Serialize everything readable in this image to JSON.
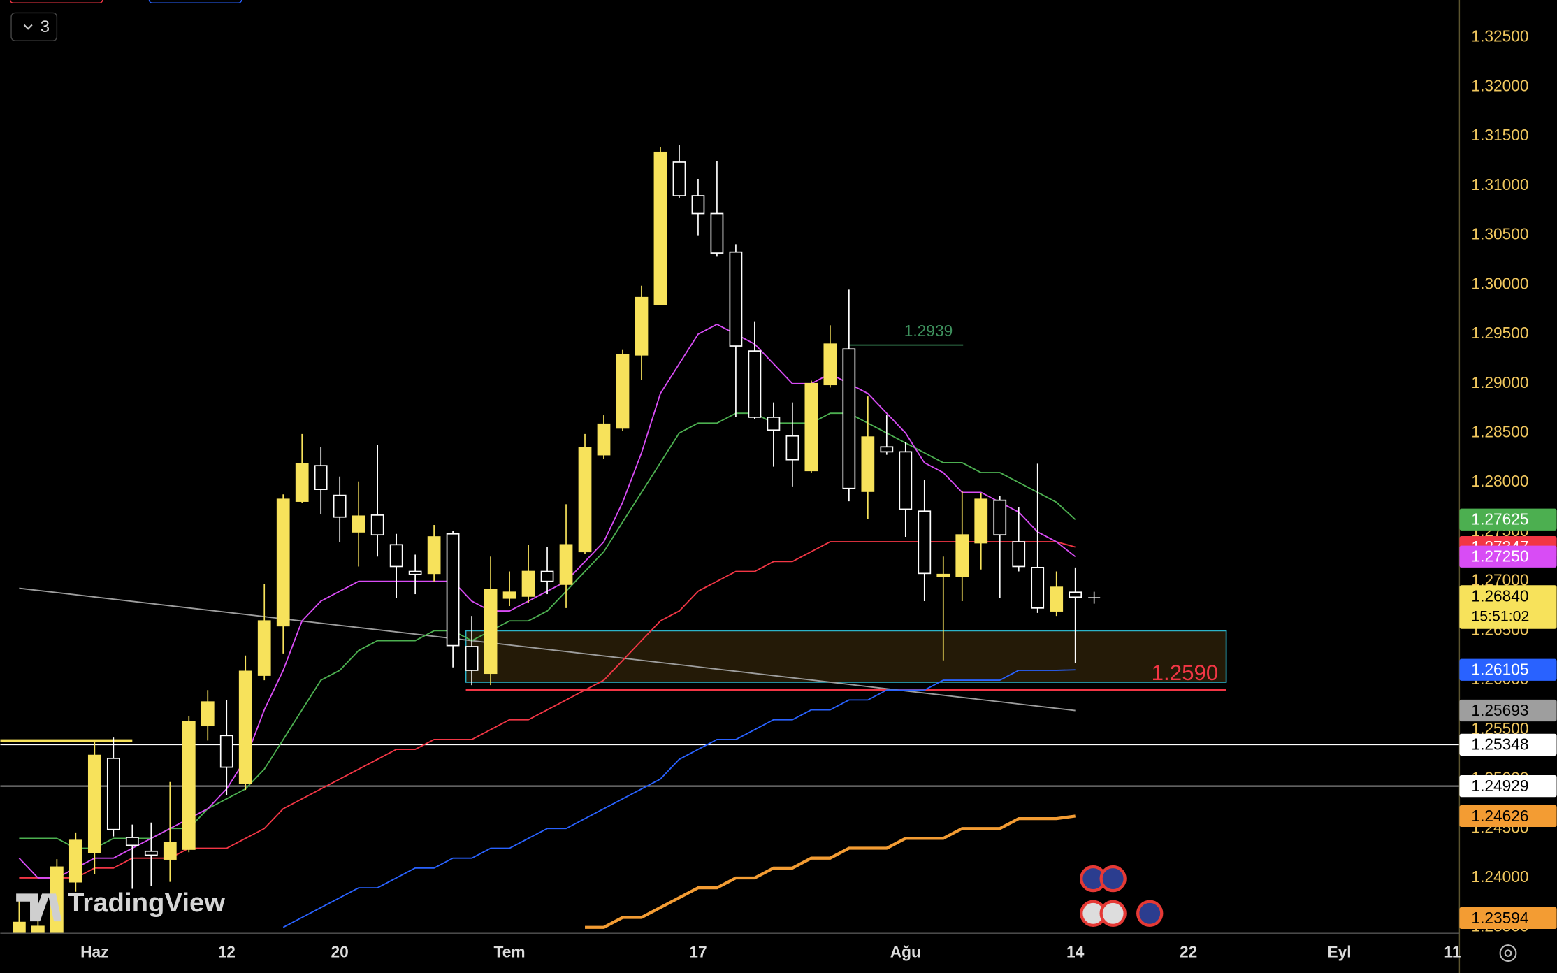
{
  "chart_data": {
    "type": "candlestick",
    "categories": [
      null,
      null,
      null,
      null,
      "Haz",
      null,
      null,
      null,
      null,
      null,
      null,
      "12",
      null,
      null,
      null,
      null,
      null,
      "20",
      null,
      null,
      null,
      null,
      null,
      null,
      null,
      null,
      "Tem",
      null,
      null,
      null,
      null,
      null,
      null,
      null,
      null,
      null,
      "17",
      null,
      null,
      null,
      null,
      null,
      null,
      null,
      null,
      null,
      null,
      "Ağu",
      null,
      null,
      null,
      null,
      null,
      null,
      null,
      null,
      "14",
      null,
      null,
      null,
      null,
      null,
      "22",
      null,
      null,
      null,
      null,
      null,
      null,
      null,
      "Eyl",
      null,
      null,
      null,
      null,
      null,
      "11"
    ],
    "open": [
      1.2343,
      1.2343,
      1.2345,
      1.2396,
      1.2426,
      1.2521,
      1.2441,
      1.2427,
      1.2419,
      1.2429,
      1.2554,
      1.2544,
      1.2496,
      1.2605,
      1.2655,
      1.2781,
      1.2817,
      1.2787,
      1.275,
      1.2767,
      1.2737,
      1.271,
      1.2708,
      1.2748,
      1.2634,
      1.2607,
      1.2683,
      1.2685,
      1.271,
      1.2697,
      1.273,
      1.2828,
      1.2855,
      1.2929,
      1.298,
      1.3124,
      1.309,
      1.3072,
      1.3033,
      1.2933,
      1.2866,
      1.2847,
      1.2812,
      1.2899,
      1.2935,
      1.2791,
      1.2836,
      1.2831,
      1.2771,
      1.2705,
      1.2705,
      1.2739,
      1.2782,
      1.274,
      1.2714,
      1.267,
      1.2689,
      null,
      null,
      null,
      null,
      null,
      null,
      null,
      null,
      null,
      null,
      null,
      null,
      null,
      null,
      null,
      null,
      null,
      null,
      null,
      null
    ],
    "high": [
      1.2384,
      1.2358,
      1.2419,
      1.2446,
      1.2539,
      1.2542,
      1.2454,
      1.2456,
      1.2497,
      1.2564,
      1.259,
      1.258,
      1.2625,
      1.2697,
      1.2788,
      1.2849,
      1.2836,
      1.2806,
      1.2801,
      1.2838,
      1.2748,
      1.2727,
      1.2757,
      1.2751,
      1.2665,
      1.2725,
      1.271,
      1.2737,
      1.2735,
      1.2778,
      1.2849,
      1.2868,
      1.2934,
      1.2999,
      1.3139,
      1.3141,
      1.3107,
      1.3125,
      1.3041,
      1.2963,
      1.2881,
      1.2881,
      1.2903,
      1.2959,
      1.2995,
      1.2887,
      1.2868,
      1.2841,
      1.2803,
      1.2725,
      1.2791,
      1.2789,
      1.2786,
      1.2775,
      1.2819,
      1.271,
      1.2714,
      null,
      null,
      null,
      null,
      null,
      null,
      null,
      null,
      null,
      null,
      null,
      null,
      null,
      null,
      null,
      null,
      null,
      null,
      null,
      null
    ],
    "low": [
      1.2338,
      1.2338,
      1.2338,
      1.2386,
      1.2404,
      1.2442,
      1.2389,
      1.2392,
      1.2396,
      1.2426,
      1.2539,
      1.2484,
      1.2489,
      1.26,
      1.2627,
      1.2779,
      1.2768,
      1.274,
      1.2715,
      1.2725,
      1.2683,
      1.2687,
      1.27,
      1.2613,
      1.2595,
      1.2595,
      1.2675,
      1.2678,
      1.2687,
      1.2673,
      1.2728,
      1.2824,
      1.2852,
      1.2904,
      1.2979,
      1.3088,
      1.305,
      1.3029,
      1.2866,
      1.2864,
      1.2816,
      1.2796,
      1.281,
      1.2896,
      1.2781,
      1.2763,
      1.2828,
      1.2745,
      1.268,
      1.262,
      1.268,
      1.2712,
      1.2683,
      1.271,
      1.2668,
      1.2665,
      1.2617,
      null,
      null,
      null,
      null,
      null,
      null,
      null,
      null,
      null,
      null,
      null,
      null,
      null,
      null,
      null,
      null,
      null,
      null,
      null,
      null
    ],
    "close": [
      1.2355,
      1.2351,
      1.2411,
      1.2438,
      1.2524,
      1.2449,
      1.2433,
      1.2423,
      1.2436,
      1.2558,
      1.2578,
      1.2512,
      1.2609,
      1.266,
      1.2783,
      1.2819,
      1.2793,
      1.2765,
      1.2766,
      1.2747,
      1.2715,
      1.2707,
      1.2745,
      1.2635,
      1.261,
      1.2692,
      1.2689,
      1.271,
      1.27,
      1.2737,
      1.2835,
      1.2859,
      1.2929,
      1.2987,
      1.3134,
      1.309,
      1.3072,
      1.3032,
      1.2938,
      1.2866,
      1.2853,
      1.2823,
      1.29,
      1.294,
      1.2794,
      1.2846,
      1.2831,
      1.2773,
      1.2708,
      1.2707,
      1.2747,
      1.2783,
      1.2747,
      1.2715,
      1.2673,
      1.2694,
      1.2684,
      null,
      null,
      null,
      null,
      null,
      null,
      null,
      null,
      null,
      null,
      null,
      null,
      null,
      null,
      null,
      null,
      null,
      null,
      null,
      null
    ],
    "up_color": "#f7e25b",
    "down_color": "#ffffff",
    "ylim": [
      1.2344,
      1.3288
    ],
    "yticks": [
      {
        "value": 1.325,
        "label": "1.32500"
      },
      {
        "value": 1.32,
        "label": "1.32000"
      },
      {
        "value": 1.315,
        "label": "1.31500"
      },
      {
        "value": 1.31,
        "label": "1.31000"
      },
      {
        "value": 1.305,
        "label": "1.30500"
      },
      {
        "value": 1.3,
        "label": "1.30000"
      },
      {
        "value": 1.295,
        "label": "1.29500"
      },
      {
        "value": 1.29,
        "label": "1.29000"
      },
      {
        "value": 1.285,
        "label": "1.28500"
      },
      {
        "value": 1.28,
        "label": "1.28000"
      },
      {
        "value": 1.275,
        "label": "1.27500"
      },
      {
        "value": 1.27,
        "label": "1.27000"
      },
      {
        "value": 1.265,
        "label": "1.26500"
      },
      {
        "value": 1.26,
        "label": "1.26000"
      },
      {
        "value": 1.255,
        "label": "1.25500"
      },
      {
        "value": 1.25,
        "label": "1.25000"
      },
      {
        "value": 1.245,
        "label": "1.24500"
      },
      {
        "value": 1.24,
        "label": "1.24000"
      },
      {
        "value": 1.235,
        "label": "1.23500"
      }
    ],
    "series": [
      {
        "color": "#4caf50",
        "end_label": "1.27625",
        "values": [
          1.244,
          1.244,
          1.244,
          1.243,
          1.243,
          1.244,
          1.244,
          1.244,
          1.245,
          1.245,
          1.247,
          1.248,
          1.249,
          1.251,
          1.254,
          1.257,
          1.26,
          1.261,
          1.263,
          1.264,
          1.264,
          1.264,
          1.265,
          1.265,
          1.264,
          1.265,
          1.266,
          1.266,
          1.267,
          1.269,
          1.271,
          1.273,
          1.276,
          1.279,
          1.282,
          1.285,
          1.286,
          1.286,
          1.287,
          1.287,
          1.286,
          1.286,
          1.286,
          1.287,
          1.287,
          1.286,
          1.285,
          1.284,
          1.283,
          1.282,
          1.282,
          1.281,
          1.281,
          1.28,
          1.279,
          1.278,
          1.27625,
          null,
          null,
          null,
          null,
          null,
          null,
          null,
          null,
          null,
          null,
          null,
          null,
          null,
          null,
          null,
          null,
          null,
          null,
          null,
          null
        ]
      },
      {
        "color": "#f23645",
        "end_label": "1.27347",
        "values": [
          1.24,
          1.24,
          1.24,
          1.24,
          1.241,
          1.241,
          1.242,
          1.242,
          1.242,
          1.243,
          1.243,
          1.243,
          1.244,
          1.245,
          1.247,
          1.248,
          1.249,
          1.25,
          1.251,
          1.252,
          1.253,
          1.253,
          1.254,
          1.254,
          1.254,
          1.255,
          1.256,
          1.256,
          1.257,
          1.258,
          1.259,
          1.26,
          1.262,
          1.264,
          1.266,
          1.267,
          1.269,
          1.27,
          1.271,
          1.271,
          1.272,
          1.272,
          1.273,
          1.274,
          1.274,
          1.274,
          1.274,
          1.274,
          1.274,
          1.274,
          1.274,
          1.274,
          1.274,
          1.274,
          1.274,
          1.274,
          1.27347,
          null,
          null,
          null,
          null,
          null,
          null,
          null,
          null,
          null,
          null,
          null,
          null,
          null,
          null,
          null,
          null,
          null,
          null,
          null,
          null
        ]
      },
      {
        "color": "#d84cf5",
        "end_label": "1.27250",
        "values": [
          1.242,
          1.24,
          1.24,
          1.241,
          1.242,
          1.242,
          1.243,
          1.244,
          1.245,
          1.246,
          1.247,
          1.249,
          1.252,
          1.257,
          1.261,
          1.266,
          1.268,
          1.269,
          1.27,
          1.27,
          1.27,
          1.27,
          1.27,
          1.27,
          1.268,
          1.267,
          1.267,
          1.268,
          1.269,
          1.27,
          1.272,
          1.274,
          1.278,
          1.283,
          1.289,
          1.292,
          1.295,
          1.296,
          1.295,
          1.294,
          1.292,
          1.29,
          1.29,
          1.291,
          1.29,
          1.289,
          1.287,
          1.285,
          1.282,
          1.281,
          1.279,
          1.279,
          1.278,
          1.277,
          1.275,
          1.274,
          1.2725,
          null,
          null,
          null,
          null,
          null,
          null,
          null,
          null,
          null,
          null,
          null,
          null,
          null,
          null,
          null,
          null,
          null,
          null,
          null,
          null
        ]
      },
      {
        "color": "#2962ff",
        "end_label": "1.26105",
        "values": [
          null,
          null,
          null,
          null,
          null,
          null,
          null,
          null,
          null,
          null,
          null,
          null,
          null,
          null,
          1.235,
          1.236,
          1.237,
          1.238,
          1.239,
          1.239,
          1.24,
          1.241,
          1.241,
          1.242,
          1.242,
          1.243,
          1.243,
          1.244,
          1.245,
          1.245,
          1.246,
          1.247,
          1.248,
          1.249,
          1.25,
          1.252,
          1.253,
          1.254,
          1.254,
          1.255,
          1.256,
          1.256,
          1.257,
          1.257,
          1.258,
          1.258,
          1.259,
          1.259,
          1.259,
          1.26,
          1.26,
          1.26,
          1.26,
          1.261,
          1.261,
          1.261,
          1.26105,
          null,
          null,
          null,
          null,
          null,
          null,
          null,
          null,
          null,
          null,
          null,
          null,
          null,
          null,
          null,
          null,
          null,
          null,
          null,
          null
        ]
      },
      {
        "color": "#f39c33",
        "end_label": "1.24626",
        "values": [
          null,
          null,
          null,
          null,
          null,
          null,
          null,
          null,
          null,
          null,
          null,
          null,
          null,
          null,
          null,
          null,
          null,
          null,
          null,
          null,
          null,
          null,
          null,
          null,
          null,
          null,
          null,
          null,
          null,
          null,
          1.235,
          1.235,
          1.236,
          1.236,
          1.237,
          1.238,
          1.239,
          1.239,
          1.24,
          1.24,
          1.241,
          1.241,
          1.242,
          1.242,
          1.243,
          1.243,
          1.243,
          1.244,
          1.244,
          1.244,
          1.245,
          1.245,
          1.245,
          1.246,
          1.246,
          1.246,
          1.24626,
          null,
          null,
          null,
          null,
          null,
          null,
          null,
          null,
          null,
          null,
          null,
          null,
          null,
          null,
          null,
          null,
          null,
          null,
          null,
          null
        ]
      }
    ],
    "trendline": {
      "color": "#9e9e9e",
      "values": [
        1.2693,
        1.25693
      ],
      "end_label": "1.25693"
    },
    "price_lines": [
      {
        "value": 1.25348,
        "label": "1.25348",
        "color": "#ffffff"
      },
      {
        "value": 1.24929,
        "label": "1.24929",
        "color": "#ffffff"
      }
    ],
    "price_tags": [
      {
        "value": 1.23594,
        "label": "1.23594",
        "color": "#f39c33"
      }
    ],
    "short_level": {
      "value": 1.2539,
      "color": "#f7e25b"
    },
    "level": {
      "value": 1.2939,
      "label": "1.2939",
      "color": "#3d8f5c"
    },
    "support_zone": {
      "top": 1.265,
      "bottom": 1.2598,
      "color": "#2bb3c9"
    },
    "support_line": {
      "value": 1.259,
      "label": "1.2590",
      "color": "#f23645"
    },
    "last_price": {
      "label": "1.26840",
      "countdown": "15:51:02"
    }
  },
  "toolbar": {
    "indicators_count": 3
  },
  "watermark": "TradingView"
}
